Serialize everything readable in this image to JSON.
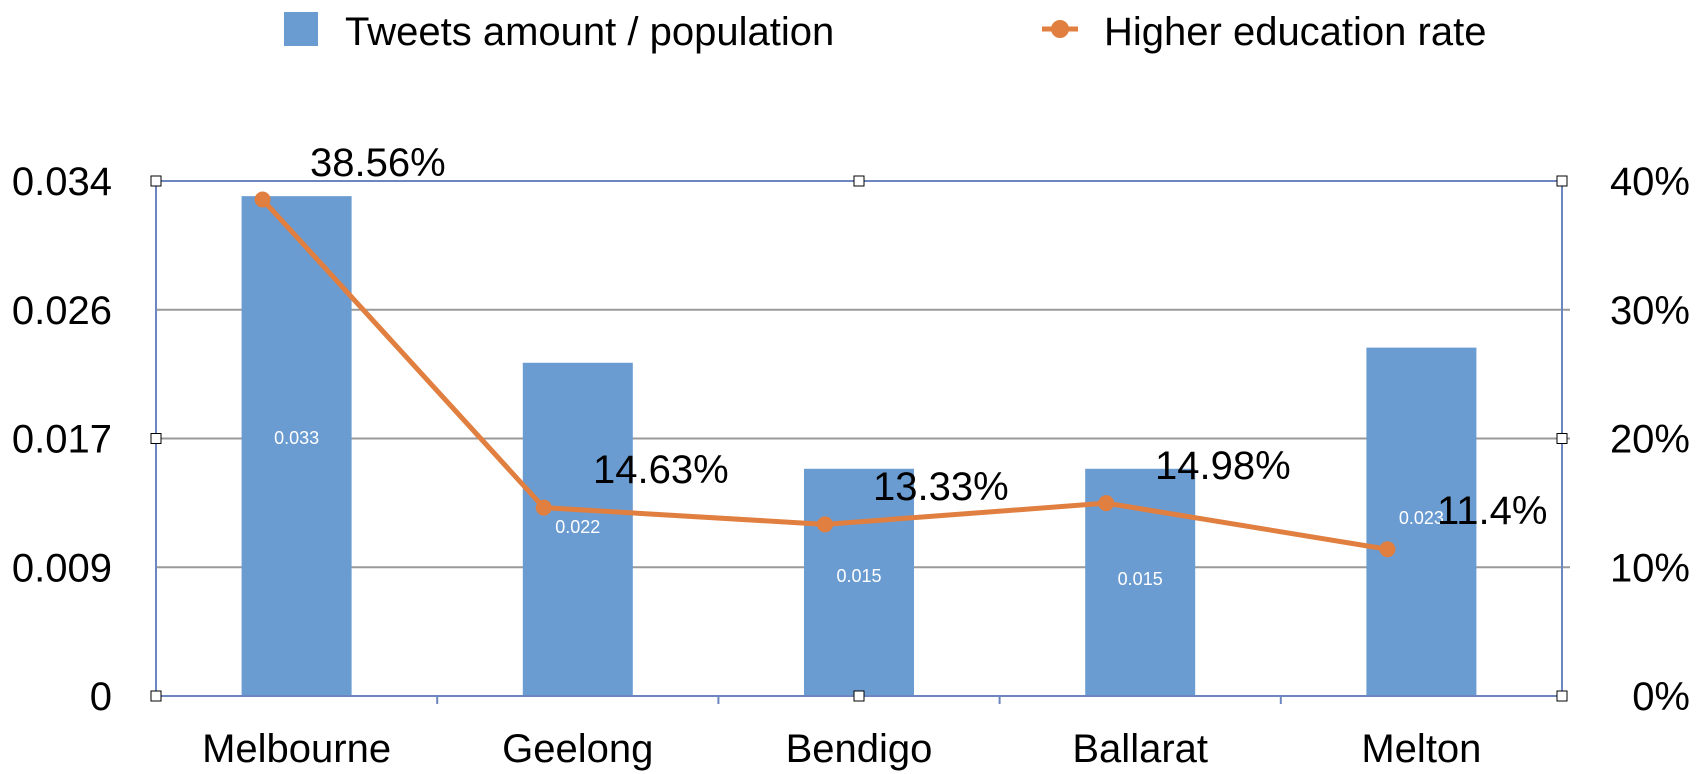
{
  "chart_data": {
    "type": "bar",
    "title": "",
    "xlabel": "",
    "ylabel": "",
    "categories": [
      "Melbourne",
      "Geelong",
      "Bendigo",
      "Ballarat",
      "Melton"
    ],
    "series": [
      {
        "name": "Tweets amount / population",
        "type": "bar",
        "axis": "left",
        "values": [
          0.033,
          0.022,
          0.015,
          0.015,
          0.023
        ],
        "labels": [
          "0.033",
          "0.022",
          "0.015",
          "0.015",
          "0.023"
        ],
        "color": "#6a9bd1"
      },
      {
        "name": "Higher education rate",
        "type": "line",
        "axis": "right",
        "values": [
          38.56,
          14.63,
          13.33,
          14.98,
          11.4
        ],
        "labels": [
          "38.56%",
          "14.63%",
          "13.33%",
          "14.98%",
          "11.4%"
        ],
        "color": "#e07f3f"
      }
    ],
    "y_left": {
      "ylim": [
        0,
        0.034
      ],
      "tick_values": [
        0,
        0.0085,
        0.017,
        0.0255,
        0.034
      ],
      "tick_labels": [
        "0",
        "0.009",
        "0.017",
        "0.026",
        "0.034"
      ]
    },
    "y_right": {
      "ylim": [
        0,
        40
      ],
      "tick_values": [
        0,
        10,
        20,
        30,
        40
      ],
      "tick_labels": [
        "0%",
        "10%",
        "20%",
        "30%",
        "40%"
      ]
    },
    "grid": true,
    "legend_position": "top"
  },
  "colors": {
    "bar": "#6a9bd1",
    "line": "#e07f3f",
    "grid": "#9a9a9a",
    "frame": "#6e86c0"
  }
}
